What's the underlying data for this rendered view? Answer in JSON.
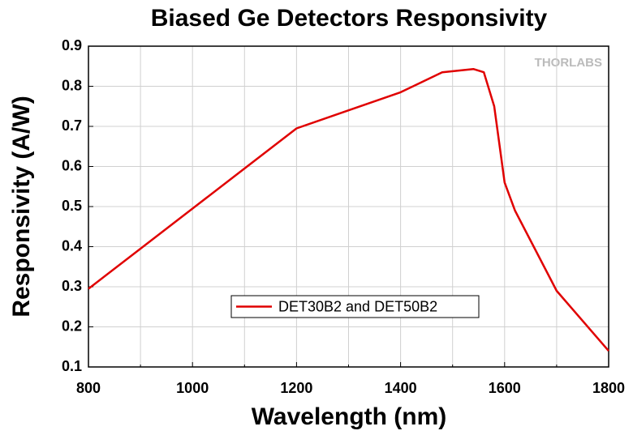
{
  "chart_data": {
    "type": "line",
    "title": "Biased Ge Detectors Responsivity",
    "x_label": "Wavelength (nm)",
    "y_label": "Responsivity (A/W)",
    "watermark": "THORLABS",
    "x": [
      800,
      900,
      1000,
      1100,
      1200,
      1300,
      1400,
      1480,
      1540,
      1560,
      1580,
      1600,
      1620,
      1700,
      1800
    ],
    "series": [
      {
        "name": "DET30B2 and DET50B2",
        "color": "#e00000",
        "values": [
          0.295,
          0.395,
          0.495,
          0.595,
          0.695,
          0.74,
          0.785,
          0.835,
          0.843,
          0.835,
          0.75,
          0.56,
          0.49,
          0.29,
          0.14
        ]
      }
    ],
    "xlim": [
      800,
      1800
    ],
    "xticks": [
      800,
      1000,
      1200,
      1400,
      1600,
      1800
    ],
    "xminorticks": [
      900,
      1100,
      1300,
      1500,
      1700
    ],
    "ylim": [
      0.1,
      0.9
    ],
    "yticks": [
      0.1,
      0.2,
      0.3,
      0.4,
      0.5,
      0.6,
      0.7,
      0.8,
      0.9
    ],
    "grid": true,
    "legend_position": "lower-center"
  }
}
